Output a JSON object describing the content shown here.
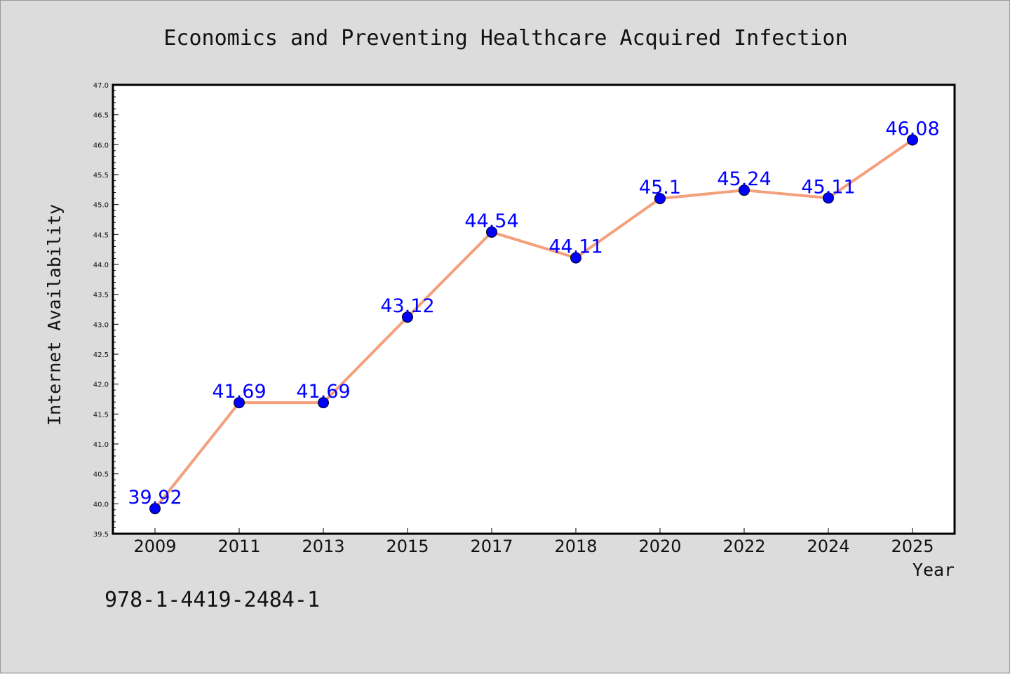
{
  "chart_data": {
    "type": "line",
    "title": "Economics and Preventing Healthcare Acquired Infection",
    "xlabel": "Year",
    "ylabel": "Internet Availability",
    "categories": [
      "2009",
      "2011",
      "2013",
      "2015",
      "2017",
      "2018",
      "2020",
      "2022",
      "2024",
      "2025"
    ],
    "values": [
      39.92,
      41.69,
      41.69,
      43.12,
      44.54,
      44.11,
      45.1,
      45.24,
      45.11,
      46.08
    ],
    "data_labels": [
      "39.92",
      "41.69",
      "41.69",
      "43.12",
      "44.54",
      "44.11",
      "45.1",
      "45.24",
      "45.11",
      "46.08"
    ],
    "ylim": [
      39.5,
      47.0
    ],
    "yticks": [
      "39.5",
      "40.0",
      "40.5",
      "41.0",
      "41.5",
      "42.0",
      "42.5",
      "43.0",
      "43.5",
      "44.0",
      "44.5",
      "45.0",
      "45.5",
      "46.0",
      "46.5",
      "47.0"
    ],
    "grid": false,
    "legend": "none",
    "line_color": "#f4a07c",
    "marker_color": "#0000ff",
    "label_color": "#0000ff",
    "background": "#dcdcdc",
    "plot_background": "#ffffff"
  },
  "footer": {
    "isbn": "978-1-4419-2484-1"
  }
}
